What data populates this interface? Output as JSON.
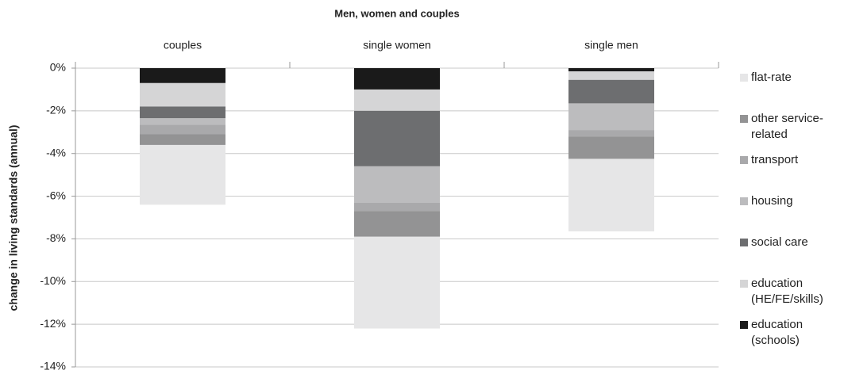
{
  "chart_data": {
    "type": "stacked-bar",
    "title": "Men, women and couples",
    "y_label": "change in living standards (annual)",
    "categories": [
      "couples",
      "single women",
      "single men"
    ],
    "series": [
      {
        "name": "flat-rate",
        "color": "#e6e6e7",
        "values": [
          -2.8,
          -4.3,
          -3.4
        ]
      },
      {
        "name": "other service-related",
        "color": "#939394",
        "values": [
          -0.5,
          -1.2,
          -1.05
        ]
      },
      {
        "name": "transport",
        "color": "#a9a9ab",
        "values": [
          -0.45,
          -0.4,
          -0.3
        ]
      },
      {
        "name": "housing",
        "color": "#bcbcbe",
        "values": [
          -0.3,
          -1.7,
          -1.25
        ]
      },
      {
        "name": "social care",
        "color": "#6d6e70",
        "values": [
          -0.55,
          -2.6,
          -1.1
        ]
      },
      {
        "name": "education (HE/FE/skills)",
        "color": "#d5d5d6",
        "values": [
          -1.1,
          -1.0,
          -0.4
        ]
      },
      {
        "name": "education (schools)",
        "color": "#1a1a1a",
        "values": [
          -0.7,
          -1.0,
          -0.15
        ]
      }
    ],
    "ylim": [
      -14,
      0
    ],
    "yticks": [
      {
        "value": 0,
        "label": "0%"
      },
      {
        "value": -2,
        "label": "-2%"
      },
      {
        "value": -4,
        "label": "-4%"
      },
      {
        "value": -6,
        "label": "-6%"
      },
      {
        "value": -8,
        "label": "-8%"
      },
      {
        "value": -10,
        "label": "-10%"
      },
      {
        "value": -12,
        "label": "-12%"
      },
      {
        "value": -14,
        "label": "-14%"
      }
    ],
    "grid": true
  }
}
